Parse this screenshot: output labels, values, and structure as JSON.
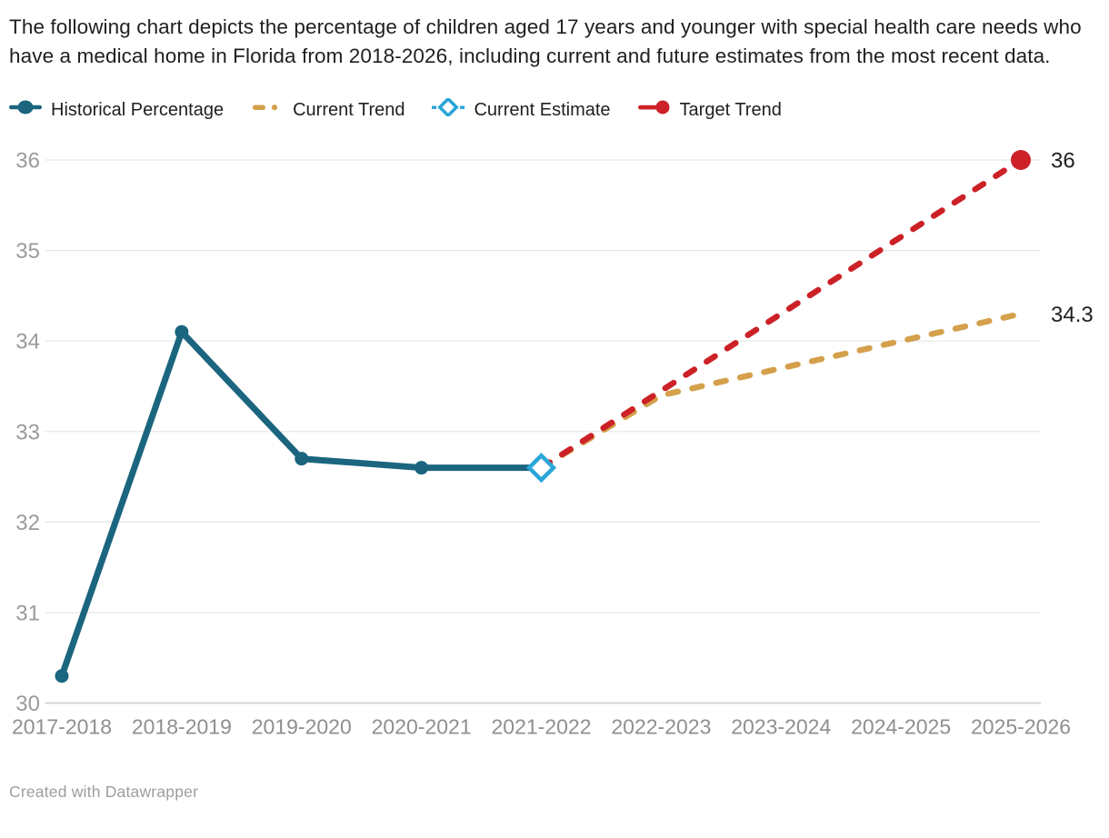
{
  "title": "The following chart depicts the percentage of children aged 17 years and younger with special health care needs who have a medical home in Florida from 2018-2026, including current and future estimates from the most recent data.",
  "legend": {
    "items": [
      {
        "label": "Historical Percentage",
        "icon": "line-dot-icon",
        "type": "line-dot",
        "color": "#1b657f"
      },
      {
        "label": "Current Trend",
        "icon": "dash-dot-icon",
        "type": "dash-dot",
        "color": "#d4a04c"
      },
      {
        "label": "Current Estimate",
        "icon": "diamond-icon",
        "type": "diamond",
        "color": "#2aa6d9"
      },
      {
        "label": "Target Trend",
        "icon": "line-dot-end-icon",
        "type": "line-dot-end",
        "color": "#cc2127"
      }
    ]
  },
  "footer": {
    "credit": "Created with Datawrapper"
  },
  "chart_data": {
    "type": "line",
    "title": "Percentage of children aged 17 and younger with special health care needs who have a medical home in Florida, 2018-2026",
    "categories": [
      "2017-2018",
      "2018-2019",
      "2019-2020",
      "2020-2021",
      "2021-2022",
      "2022-2023",
      "2023-2024",
      "2024-2025",
      "2025-2026"
    ],
    "series": [
      {
        "name": "Historical Percentage",
        "color": "#1b657f",
        "style": "solid",
        "marker": "circle",
        "values": [
          30.3,
          34.1,
          32.7,
          32.6,
          32.6,
          null,
          null,
          null,
          null
        ]
      },
      {
        "name": "Current Trend",
        "color": "#d4a04c",
        "style": "dashed",
        "marker": "none",
        "values": [
          null,
          null,
          null,
          null,
          32.6,
          33.4,
          33.7,
          34.0,
          34.3
        ],
        "end_label": "34.3"
      },
      {
        "name": "Target Trend",
        "color": "#cc2127",
        "style": "dashed",
        "marker": "none",
        "marker_end": "circle",
        "values": [
          null,
          null,
          null,
          null,
          32.6,
          null,
          null,
          null,
          36
        ],
        "end_label": "36"
      },
      {
        "name": "Current Estimate",
        "color": "#2aa6d9",
        "style": "none",
        "marker": "diamond",
        "values": [
          null,
          null,
          null,
          null,
          32.6,
          null,
          null,
          null,
          null
        ]
      }
    ],
    "xlabel": "",
    "ylabel": "",
    "ylim": [
      30,
      36
    ],
    "yticks": [
      30,
      31,
      32,
      33,
      34,
      35,
      36
    ],
    "grid": true,
    "legend_position": "top",
    "colors": {
      "grid_line": "#e6e6e6",
      "baseline": "#cfcfcf",
      "y_tick_label": "#9b9b9b",
      "x_tick_label": "#8f8f8f",
      "end_label": "#1f1f1f"
    }
  }
}
